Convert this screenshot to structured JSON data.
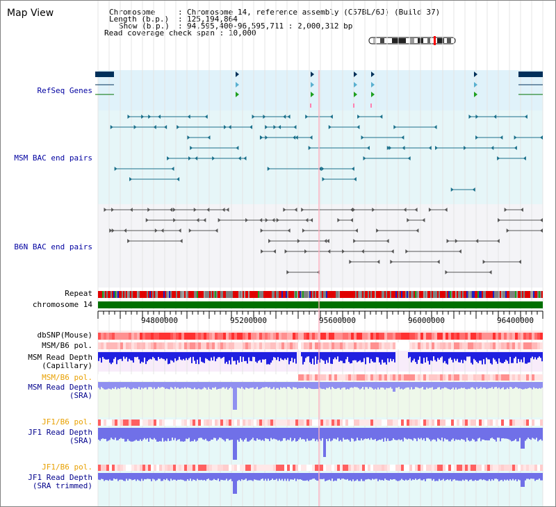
{
  "page_title": "Map View",
  "info": {
    "chromosome_key": "Chromosome",
    "chromosome_value": "Chromosome 14, reference assembly (C57BL/6J) (Build 37)",
    "length_key": "Length (b.p.)",
    "length_value": "125,194,864",
    "show_key": "Show (b.p.)",
    "show_value": "94,595,400-96,595,711 : 2,000,312 bp",
    "coverage_key": "Read coverage check span",
    "coverage_value": "10,000"
  },
  "tracks": {
    "refseq": "RefSeq Genes",
    "msm_bac": "MSM BAC end pairs",
    "b6n_bac": "B6N BAC end pairs",
    "repeat": "Repeat",
    "chromosome": "chromosome 14",
    "dbsnp": "dbSNP(Mouse)",
    "msm_b6_pol": "MSM/B6 pol.",
    "msm_read_depth_cap": [
      "MSM Read Depth",
      "(Capillary)"
    ],
    "msm_b6_pol_2": "MSM/B6 pol.",
    "msm_read_depth_sra": [
      "MSM Read Depth",
      "(SRA)"
    ],
    "jf1_b6_pol": "JF1/B6 pol.",
    "jf1_read_depth_sra": [
      "JF1 Read Depth",
      "(SRA)"
    ],
    "jf1_b6_pol_2": "JF1/B6 pol.",
    "jf1_read_depth_trim": [
      "JF1 Read Depth",
      "(SRA trimmed)"
    ]
  },
  "axis": {
    "ticks": [
      "94800000",
      "95200000",
      "95600000",
      "96000000",
      "96400000"
    ],
    "tick_values": [
      94800000,
      95200000,
      95600000,
      96000000,
      96400000
    ],
    "range": [
      94595400,
      96595711
    ]
  },
  "colors": {
    "refseq_bg": "#e0f2fa",
    "bac_bg": "#e6f6f8",
    "b6n_bg": "#f3f3f6",
    "chrom_green": "#007000",
    "snp_red": "#ff3030",
    "depth_blue": "#2020e0",
    "depth_light": "#9090f0",
    "highlight_pink": "#ffb0c0"
  }
}
